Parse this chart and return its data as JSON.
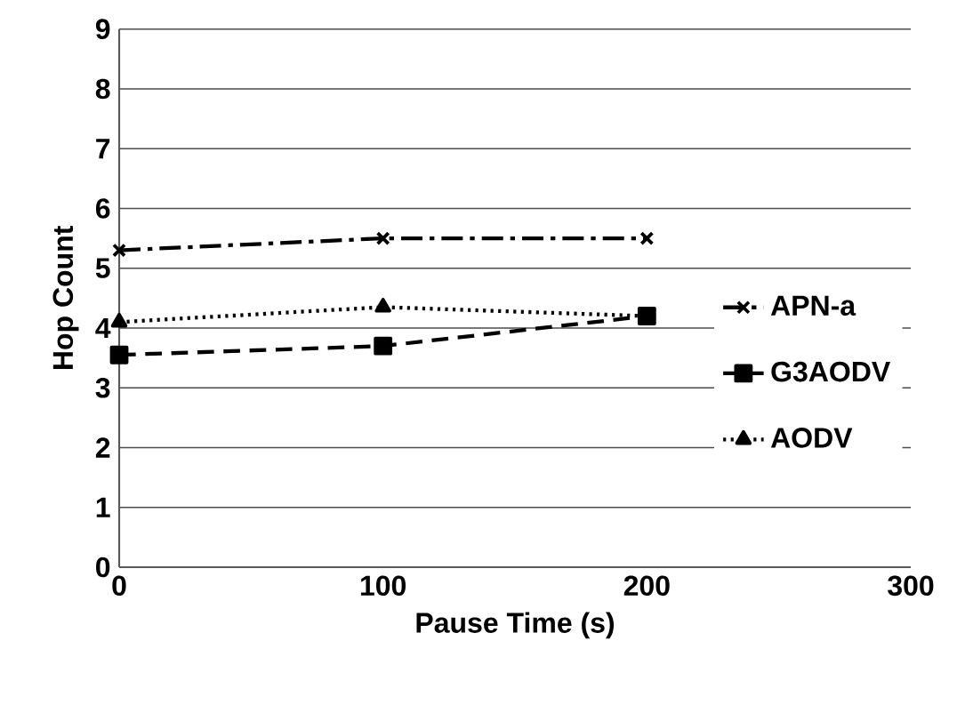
{
  "chart_data": {
    "type": "line",
    "xlabel": "Pause Time (s)",
    "ylabel": "Hop Count",
    "x": [
      0,
      100,
      200
    ],
    "series": [
      {
        "name": "APN-a",
        "color": "#000000",
        "values": [
          5.3,
          5.5,
          5.5
        ],
        "marker": "cross",
        "line_style": "dashdot"
      },
      {
        "name": "G3AODV",
        "color": "#000000",
        "values": [
          3.55,
          3.7,
          4.2
        ],
        "marker": "square",
        "line_style": "dashed"
      },
      {
        "name": "AODV",
        "color": "#000000",
        "values": [
          4.1,
          4.35,
          4.2
        ],
        "marker": "triangle",
        "line_style": "dotted"
      }
    ],
    "xlim": [
      0,
      300
    ],
    "ylim": [
      0,
      9
    ],
    "xticks": [
      0,
      100,
      200,
      300
    ],
    "yticks": [
      0,
      1,
      2,
      3,
      4,
      5,
      6,
      7,
      8,
      9
    ],
    "grid": "y",
    "legend": "right"
  }
}
